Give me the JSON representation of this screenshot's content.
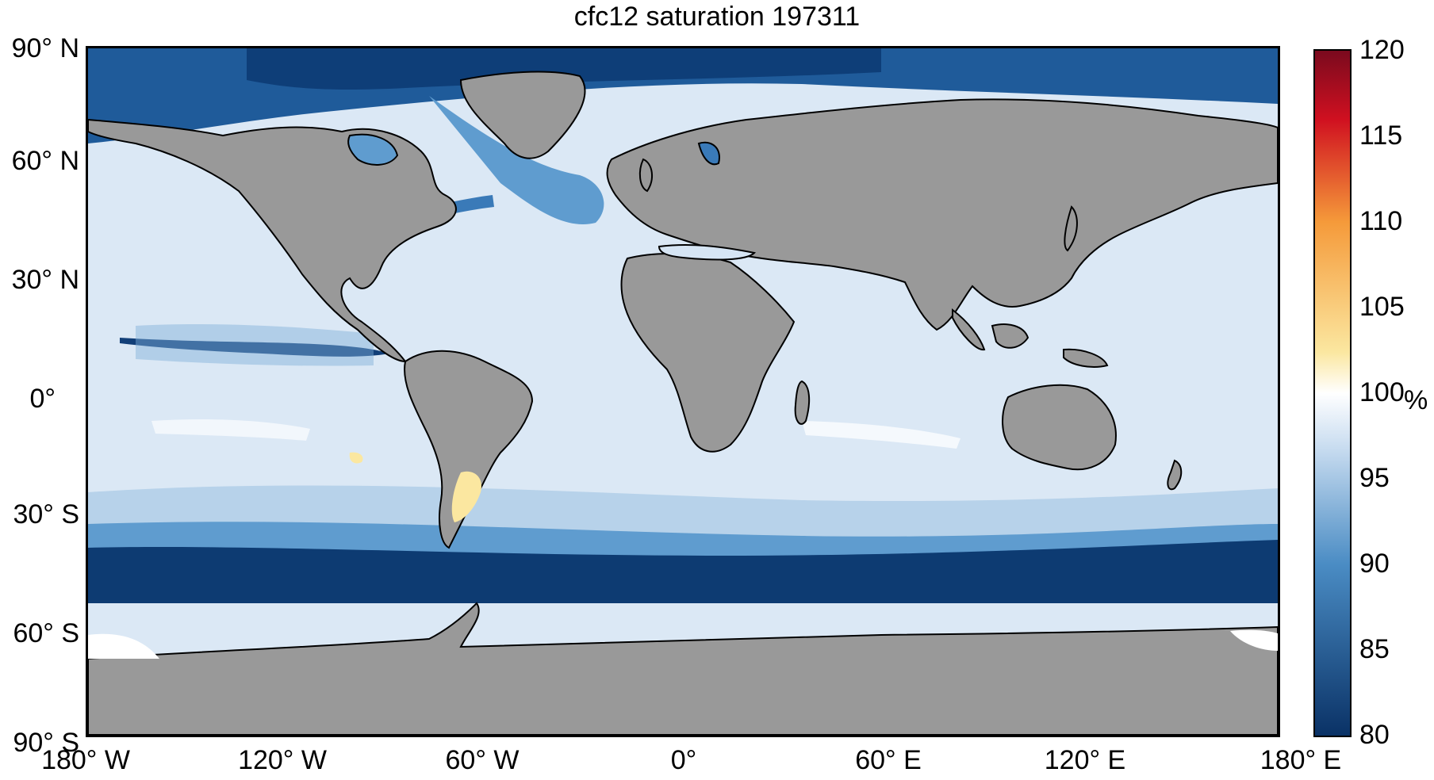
{
  "title": "cfc12 saturation 197311",
  "lat_labels": [
    "90° N",
    "60° N",
    "30° N",
    "0°",
    "30° S",
    "60° S",
    "90° S"
  ],
  "lon_labels": [
    "180° W",
    "120° W",
    "60° W",
    "0°",
    "60° E",
    "120° E",
    "180° E"
  ],
  "colorbar": {
    "ticks": [
      "120",
      "115",
      "110",
      "105",
      "100",
      "95",
      "90",
      "85",
      "80"
    ],
    "unit": "%",
    "range": [
      80,
      120
    ],
    "colors": {
      "low": "#0a3266",
      "mid_low": "#4a8cc4",
      "near_full": "#c8dcf0",
      "full": "#ffffff",
      "high_low": "#fbe7a0",
      "high_mid": "#f59a3a",
      "high": "#7a0a1e"
    }
  },
  "map": {
    "land_color": "#999999",
    "ocean_base_color": "#dde9f6",
    "features": [
      {
        "name": "southern-ocean-band",
        "value": 80
      },
      {
        "name": "arctic-ocean",
        "value": 83
      },
      {
        "name": "equatorial-pacific-band",
        "value": 82
      },
      {
        "name": "patagonian-shelf-anomaly",
        "value": 102
      }
    ]
  }
}
